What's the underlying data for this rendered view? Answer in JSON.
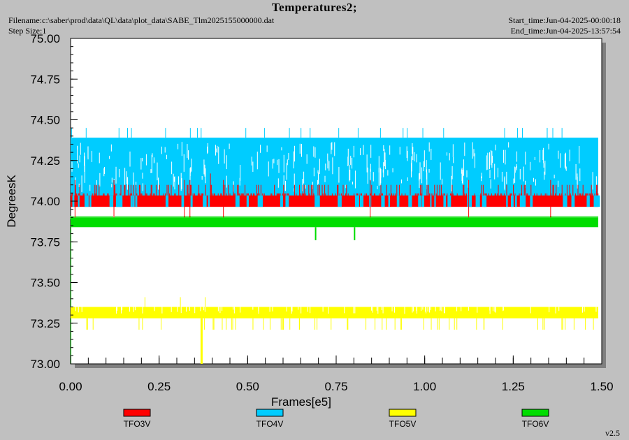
{
  "header": {
    "title": "Temperatures2;",
    "filename": "Filename:c:\\saber\\prod\\data\\QL\\data\\plot_data\\SABE_Tlm2025155000000.dat",
    "step_size": "Step Size:1",
    "start_time": "Start_time:Jun-04-2025-00:00:18",
    "end_time": "End_time:Jun-04-2025-13:57:54"
  },
  "footer": {
    "version": "v2.5"
  },
  "chart_data": {
    "type": "line",
    "title": "Temperatures2;",
    "xlabel": "Frames[e5]",
    "ylabel": "DegreesK",
    "xlim": [
      0,
      1.5
    ],
    "ylim": [
      73.0,
      75.0
    ],
    "x_ticks": [
      "0.00",
      "0.25",
      "0.50",
      "0.75",
      "1.00",
      "1.25",
      "1.50"
    ],
    "y_ticks": [
      "73.00",
      "73.25",
      "73.50",
      "73.75",
      "74.00",
      "74.25",
      "74.50",
      "74.75",
      "75.00"
    ],
    "grid": false,
    "legend_position": "bottom",
    "series": [
      {
        "name": "TFO3V",
        "color": "#ff0000",
        "x_range": [
          0,
          1.49
        ],
        "band": [
          73.97,
          74.1
        ],
        "spikes_low": 73.9,
        "spikes_high": 74.17
      },
      {
        "name": "TFO4V",
        "color": "#00ccff",
        "x_range": [
          0,
          1.49
        ],
        "band": [
          74.03,
          74.39
        ],
        "spikes_low": 73.97,
        "spikes_high": 74.45
      },
      {
        "name": "TFO5V",
        "color": "#ffff00",
        "x_range": [
          0,
          1.49
        ],
        "band": [
          73.28,
          73.35
        ],
        "spikes_low": 73.21,
        "spikes_high": 73.41,
        "min_value": 73.0
      },
      {
        "name": "TFO6V",
        "color": "#00dd00",
        "x_range": [
          0,
          1.49
        ],
        "band": [
          73.84,
          73.9
        ],
        "spikes_low": 73.76,
        "spikes_high": 73.9
      }
    ]
  }
}
